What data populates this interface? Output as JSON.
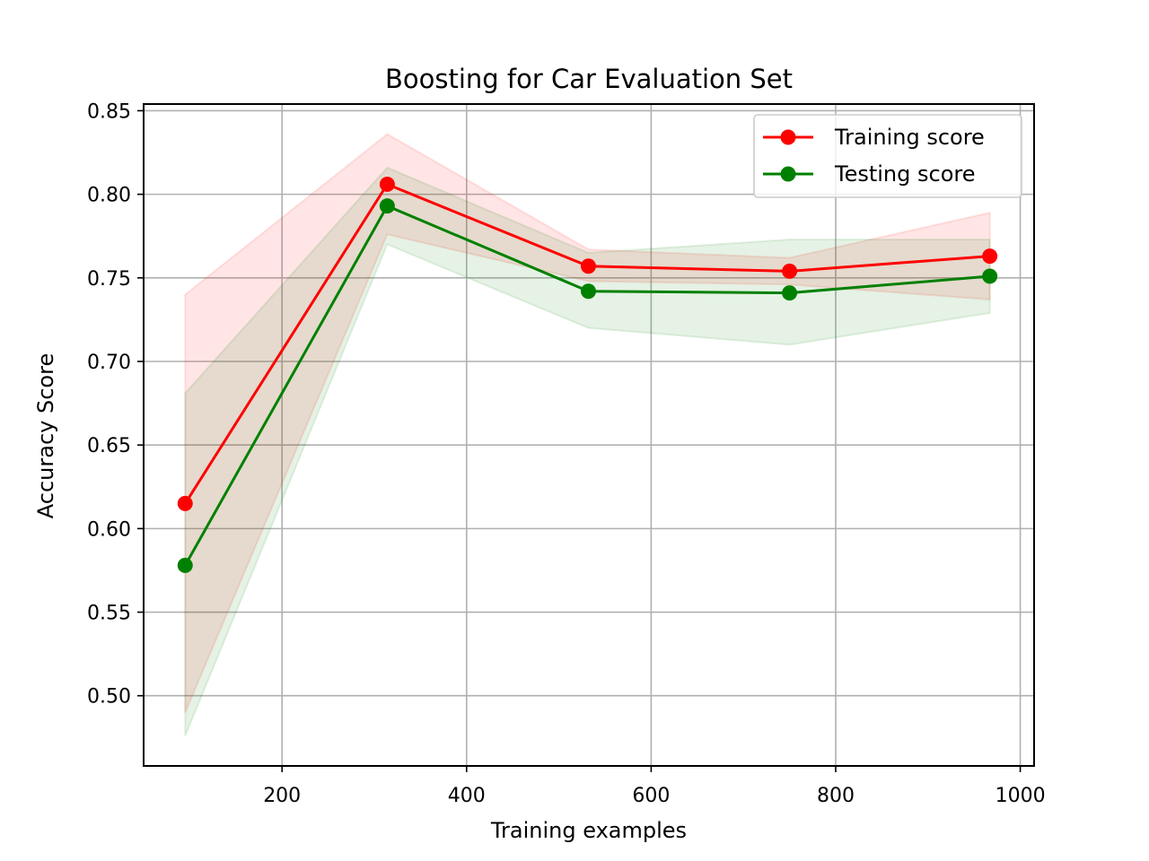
{
  "chart_data": {
    "type": "line",
    "title": "Boosting for Car Evaluation Set",
    "xlabel": "Training examples",
    "ylabel": "Accuracy Score",
    "xlim": [
      50,
      1015
    ],
    "ylim": [
      0.458,
      0.854
    ],
    "xticks": [
      200,
      400,
      600,
      800,
      1000
    ],
    "xtick_labels": [
      "200",
      "400",
      "600",
      "800",
      "1000"
    ],
    "yticks": [
      0.5,
      0.55,
      0.6,
      0.65,
      0.7,
      0.75,
      0.8,
      0.85
    ],
    "ytick_labels": [
      "0.50",
      "0.55",
      "0.60",
      "0.65",
      "0.70",
      "0.75",
      "0.80",
      "0.85"
    ],
    "grid": true,
    "legend_position": "top-right",
    "x": [
      95,
      314,
      532,
      750,
      967
    ],
    "series": [
      {
        "name": "Training score",
        "color": "#ff0000",
        "values": [
          0.615,
          0.806,
          0.757,
          0.754,
          0.763
        ],
        "band_lower": [
          0.49,
          0.776,
          0.748,
          0.746,
          0.737
        ],
        "band_upper": [
          0.74,
          0.836,
          0.767,
          0.762,
          0.789
        ]
      },
      {
        "name": "Testing score",
        "color": "#008000",
        "values": [
          0.578,
          0.793,
          0.742,
          0.741,
          0.751
        ],
        "band_lower": [
          0.476,
          0.77,
          0.72,
          0.71,
          0.729
        ],
        "band_upper": [
          0.681,
          0.816,
          0.765,
          0.773,
          0.773
        ]
      }
    ]
  }
}
